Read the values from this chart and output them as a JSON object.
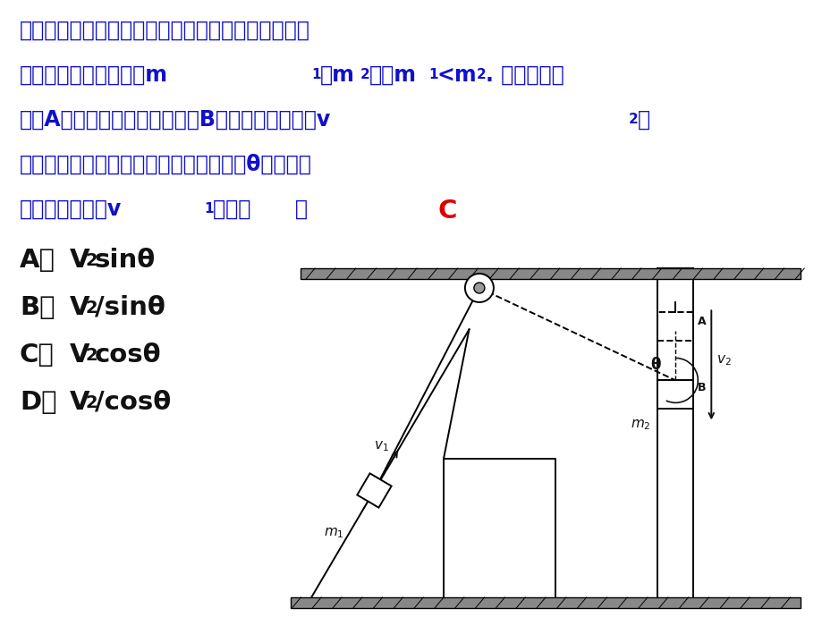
{
  "bg_color": "#FFFFFF",
  "blue": "#1010CC",
  "black": "#111111",
  "red": "#DD0000",
  "line1": "如图所示，不计所有接触面之间的摩擦，斜面固定，",
  "line2a": "物块和滑块质量分别为m",
  "line2b": "和m",
  "line2c": "，且m",
  "line2d": "<m",
  "line2e": ". 若将滑块从",
  "line3a": "位置A由静止释放，当落到位置B时，滑块的速度为v",
  "line3b": "，",
  "line4": "且与滑块牵连的绳子与竖直方向的夹角为θ，则这时",
  "line5a": "物块的速度大小v",
  "line5b": "等于（      ）",
  "answer": "C",
  "opt_A_label": "A．",
  "opt_A_V": "V",
  "opt_A_sub": "2",
  "opt_A_trig": "sinθ",
  "opt_B_label": "B．",
  "opt_B_V": "V",
  "opt_B_sub": "2",
  "opt_B_trig": "/sinθ",
  "opt_C_label": "C．",
  "opt_C_V": "V",
  "opt_C_sub": "2",
  "opt_C_trig": "cosθ",
  "opt_D_label": "D．",
  "opt_D_V": "V",
  "opt_D_sub": "2",
  "opt_D_trig": "/cosθ",
  "text_fontsize": 17,
  "sub_fontsize": 11,
  "opt_fontsize": 21,
  "opt_sub_fontsize": 14
}
